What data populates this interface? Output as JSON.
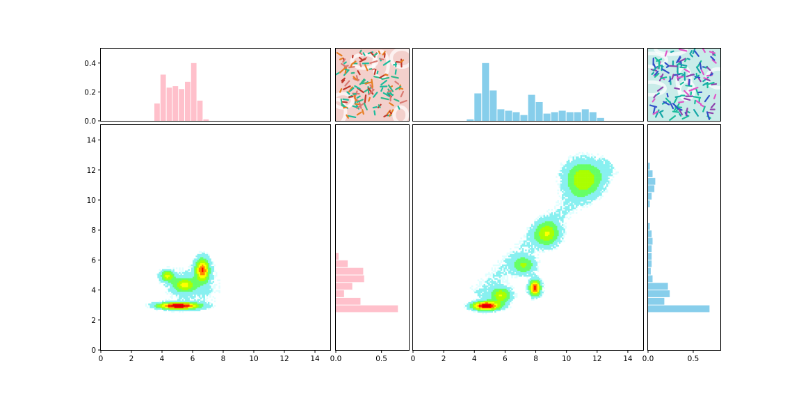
{
  "figure": {
    "background": "#ffffff",
    "colors": {
      "pink": "#ffc0cb",
      "blue": "#87ceeb",
      "axis": "#000000"
    }
  },
  "chart_data": [
    {
      "id": "left_top_hist",
      "type": "bar",
      "orientation": "vertical",
      "color": "#ffc0cb",
      "xlim": [
        0,
        15
      ],
      "ylim": [
        0,
        0.5
      ],
      "y_ticks": [
        0.0,
        0.2,
        0.4
      ],
      "y_tick_labels": [
        "0.0",
        "0.2",
        "0.4"
      ],
      "bin_width": 0.4,
      "bin_starts": [
        3.5,
        3.9,
        4.3,
        4.7,
        5.1,
        5.5,
        5.9,
        6.3,
        6.7,
        7.1,
        7.5
      ],
      "values": [
        0.12,
        0.32,
        0.23,
        0.24,
        0.22,
        0.27,
        0.4,
        0.14,
        0.01,
        0.0,
        0.0
      ]
    },
    {
      "id": "left_scatter",
      "type": "heatmap",
      "colormap": [
        "#e0ffff",
        "#88f0f0",
        "#66ff66",
        "#aaff00",
        "#ffff00",
        "#ff8800",
        "#ff0000",
        "#cc0000"
      ],
      "xlim": [
        0,
        15
      ],
      "ylim": [
        0,
        15
      ],
      "x_ticks": [
        0,
        2,
        4,
        6,
        8,
        10,
        12,
        14
      ],
      "x_tick_labels": [
        "0",
        "2",
        "4",
        "6",
        "8",
        "10",
        "12",
        "14"
      ],
      "y_ticks": [
        0,
        2,
        4,
        6,
        8,
        10,
        12,
        14
      ],
      "y_tick_labels": [
        "0",
        "2",
        "4",
        "6",
        "8",
        "10",
        "12",
        "14"
      ],
      "clusters": [
        {
          "x": 5.0,
          "y": 2.9,
          "sx": 0.9,
          "sy": 0.15,
          "w": 1.0
        },
        {
          "x": 6.6,
          "y": 5.3,
          "sx": 0.3,
          "sy": 0.5,
          "w": 0.75
        },
        {
          "x": 4.3,
          "y": 4.9,
          "sx": 0.3,
          "sy": 0.25,
          "w": 0.5
        },
        {
          "x": 5.4,
          "y": 4.3,
          "sx": 0.5,
          "sy": 0.3,
          "w": 0.45
        },
        {
          "x": 6.0,
          "y": 4.2,
          "sx": 1.2,
          "sy": 1.0,
          "w": 0.12
        }
      ]
    },
    {
      "id": "left_right_hist",
      "type": "bar",
      "orientation": "horizontal",
      "color": "#ffc0cb",
      "xlim": [
        0,
        0.8
      ],
      "ylim": [
        0,
        15
      ],
      "x_ticks": [
        0.0,
        0.5
      ],
      "x_tick_labels": [
        "0.0",
        "0.5"
      ],
      "bin_height": 0.5,
      "bin_starts": [
        2.5,
        3.0,
        3.5,
        4.0,
        4.5,
        5.0,
        5.5,
        6.0
      ],
      "values": [
        0.68,
        0.27,
        0.09,
        0.18,
        0.31,
        0.3,
        0.13,
        0.03
      ]
    },
    {
      "id": "right_top_hist",
      "type": "bar",
      "orientation": "vertical",
      "color": "#87ceeb",
      "xlim": [
        0,
        15
      ],
      "ylim": [
        0,
        0.5
      ],
      "bin_width": 0.5,
      "bin_starts": [
        3.5,
        4.0,
        4.5,
        5.0,
        5.5,
        6.0,
        6.5,
        7.0,
        7.5,
        8.0,
        8.5,
        9.0,
        9.5,
        10.0,
        10.5,
        11.0,
        11.5,
        12.0
      ],
      "values": [
        0.01,
        0.19,
        0.4,
        0.21,
        0.08,
        0.07,
        0.06,
        0.04,
        0.18,
        0.13,
        0.05,
        0.06,
        0.07,
        0.06,
        0.06,
        0.08,
        0.06,
        0.02
      ]
    },
    {
      "id": "right_scatter",
      "type": "heatmap",
      "colormap": [
        "#e0ffff",
        "#88f0f0",
        "#66ff66",
        "#aaff00",
        "#ffff00",
        "#ff8800",
        "#ff0000",
        "#cc0000"
      ],
      "xlim": [
        0,
        15
      ],
      "ylim": [
        0,
        15
      ],
      "x_ticks": [
        0,
        2,
        4,
        6,
        8,
        10,
        12,
        14
      ],
      "x_tick_labels": [
        "0",
        "2",
        "4",
        "6",
        "8",
        "10",
        "12",
        "14"
      ],
      "clusters": [
        {
          "x": 4.7,
          "y": 2.9,
          "sx": 0.6,
          "sy": 0.2,
          "w": 1.0
        },
        {
          "x": 5.7,
          "y": 3.6,
          "sx": 0.45,
          "sy": 0.35,
          "w": 0.5
        },
        {
          "x": 7.9,
          "y": 4.1,
          "sx": 0.25,
          "sy": 0.35,
          "w": 0.85
        },
        {
          "x": 7.2,
          "y": 5.6,
          "sx": 0.5,
          "sy": 0.4,
          "w": 0.35
        },
        {
          "x": 8.7,
          "y": 7.7,
          "sx": 0.55,
          "sy": 0.55,
          "w": 0.45
        },
        {
          "x": 11.0,
          "y": 11.4,
          "sx": 0.8,
          "sy": 0.8,
          "w": 0.45
        },
        {
          "x": 8.5,
          "y": 8.0,
          "sx": 2.2,
          "sy": 2.4,
          "w": 0.08,
          "diag": true
        }
      ]
    },
    {
      "id": "right_right_hist",
      "type": "bar",
      "orientation": "horizontal",
      "color": "#87ceeb",
      "xlim": [
        0,
        0.8
      ],
      "ylim": [
        0,
        15
      ],
      "x_ticks": [
        0.0,
        0.5
      ],
      "x_tick_labels": [
        "0.0",
        "0.5"
      ],
      "bin_height": 0.5,
      "bin_starts": [
        2.5,
        3.0,
        3.5,
        4.0,
        4.5,
        5.0,
        5.5,
        6.0,
        6.5,
        7.0,
        7.5,
        8.0,
        9.5,
        10.0,
        10.5,
        11.0,
        11.5,
        12.0
      ],
      "values": [
        0.68,
        0.18,
        0.24,
        0.22,
        0.05,
        0.03,
        0.04,
        0.04,
        0.04,
        0.05,
        0.04,
        0.02,
        0.02,
        0.04,
        0.07,
        0.08,
        0.05,
        0.02
      ]
    }
  ],
  "insets": [
    {
      "id": "left_structure",
      "icon": "protein-structure-icon",
      "palette": [
        "#d97a72",
        "#2eb88a",
        "#e67e22",
        "#1abc9c",
        "#c0392b",
        "#f3d0cc"
      ]
    },
    {
      "id": "right_structure",
      "icon": "protein-structure-icon",
      "palette": [
        "#16a7a7",
        "#8e44ad",
        "#3050c8",
        "#e056c8",
        "#1abc9c",
        "#c9ece9"
      ]
    }
  ]
}
